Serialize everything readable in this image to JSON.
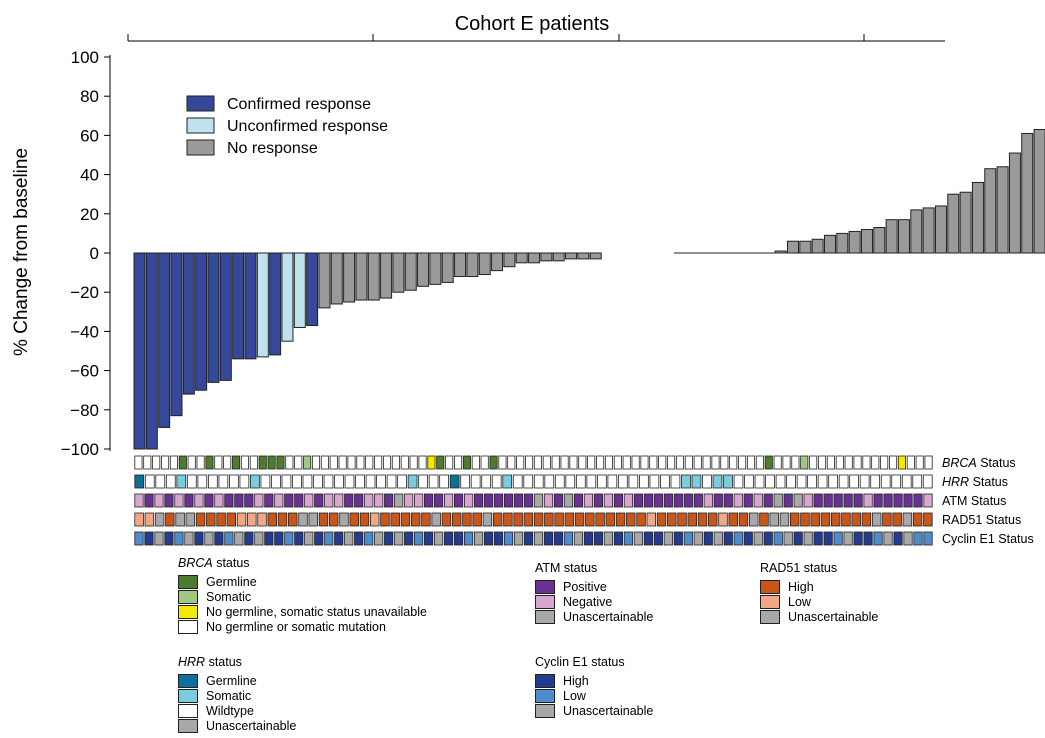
{
  "chart_data": {
    "type": "bar",
    "title": "Cohort E patients",
    "ylabel": "% Change from baseline",
    "xlabel": "",
    "ylim": [
      -100,
      100
    ],
    "yticks": [
      100,
      80,
      60,
      40,
      20,
      0,
      -20,
      -40,
      -60,
      -80,
      -100
    ],
    "grid": false,
    "legend_position": "top-left",
    "response_legend": [
      {
        "label": "Confirmed response",
        "color": "#35489a"
      },
      {
        "label": "Unconfirmed response",
        "color": "#bfe2ee"
      },
      {
        "label": "No response",
        "color": "#9a9a9a"
      }
    ],
    "values": [
      -100,
      -100,
      -89,
      -83,
      -72,
      -70,
      -66,
      -65,
      -54,
      -54,
      -53,
      -52,
      -45,
      -38,
      -37,
      -28,
      -26,
      -25,
      -24,
      -24,
      -23,
      -20,
      -19,
      -17,
      -16,
      -15,
      -12,
      -12,
      -11,
      -9,
      -7,
      -5,
      -5,
      -4,
      -4,
      -3,
      -3,
      -3,
      null,
      null,
      null,
      null,
      null,
      null,
      null,
      null,
      null,
      null,
      null,
      null,
      null,
      null,
      1,
      6,
      6,
      7,
      9,
      10,
      11,
      12,
      13,
      17,
      17,
      22,
      23,
      24,
      30,
      31,
      36,
      43,
      44,
      51,
      61,
      63
    ],
    "responses": [
      "C",
      "C",
      "C",
      "C",
      "C",
      "C",
      "C",
      "C",
      "C",
      "C",
      "U",
      "C",
      "U",
      "U",
      "C",
      "N",
      "N",
      "N",
      "N",
      "N",
      "N",
      "N",
      "N",
      "N",
      "N",
      "N",
      "N",
      "N",
      "N",
      "N",
      "N",
      "N",
      "N",
      "N",
      "N",
      "N",
      "N",
      "N",
      "",
      "",
      "",
      "",
      "",
      "",
      "",
      "",
      "",
      "",
      "",
      "",
      "",
      "",
      "N",
      "N",
      "N",
      "N",
      "N",
      "N",
      "N",
      "N",
      "N",
      "N",
      "N",
      "N",
      "N",
      "N",
      "N",
      "N",
      "N",
      "N",
      "N",
      "N",
      "N",
      "N"
    ],
    "status_rows": [
      {
        "label_italic": "BRCA",
        "label_rest": " Status",
        "codes": "WWWWWGWWGWWGWWGGGWWSWWWWWWWWWWWWWYGWWGWWGWWWWWWWWWWWWWWWWWWWWWWWWWWWWWWGWWWSWWWWWWWWWWYWWW"
      },
      {
        "label_italic": "HRR",
        "label_rest": " Status",
        "codes": "GWWWSWWWWWWSWWWWWWWWWWWWWWSWWWGWWWWSWWWWWWWWWWWWWWWWSSWSSWWWWWWWWWWWWWWWWWWW"
      },
      {
        "label_italic": "",
        "label_rest": "ATM Status",
        "codes": "NPNPNPNPNPPPNPNPPNPNNPPNNPUNNPPNPNPPPPPPUNPUPNPNPNPPPPPPPNPPNPNPUPUNPPPPPNPPPPPN"
      },
      {
        "label_italic": "",
        "label_rest": "RAD51 Status",
        "codes": "LLUHUUHHHHLLLHHHUUHHUHHLHHHHHUHHHHUHHHHHHHHHHHHHHHLHHHHHHLHHUHUUHHHHHHHHUHHUHH"
      },
      {
        "label_italic": "",
        "label_rest": "Cyclin E1 Status",
        "codes": "LHUHLUHUHLUHUHHLHUHLHUHLUHUHLHUHHLUHHLUHUHHLUHHUHLUHHUHLUHUHLHUHLUHUHHLUHHLUHULL"
      }
    ],
    "status_colors": {
      "brca": {
        "G": "#4e7c2e",
        "S": "#9fc983",
        "Y": "#f4ea00",
        "W": "#ffffff"
      },
      "hrr": {
        "G": "#0d6f9a",
        "S": "#7ccce0",
        "W": "#ffffff",
        "U": "#a8a8a8"
      },
      "atm": {
        "P": "#6a3195",
        "N": "#d8a6cf",
        "U": "#a8a8a8"
      },
      "rad51": {
        "H": "#c8561a",
        "L": "#f2a887",
        "U": "#a8a8a8"
      },
      "cyclin": {
        "H": "#243b90",
        "L": "#4f8ccb",
        "U": "#a8a8a8"
      }
    }
  },
  "legends": {
    "brca": {
      "title_italic": "BRCA",
      "title_rest": " status",
      "items": [
        {
          "label": "Germline",
          "color": "#4e7c2e"
        },
        {
          "label": "Somatic",
          "color": "#9fc983"
        },
        {
          "label": "No germline, somatic status unavailable",
          "color": "#f4ea00"
        },
        {
          "label": "No germline or somatic mutation",
          "color": "#ffffff"
        }
      ]
    },
    "hrr": {
      "title_italic": "HRR",
      "title_rest": " status",
      "items": [
        {
          "label": "Germline",
          "color": "#0d6f9a"
        },
        {
          "label": "Somatic",
          "color": "#7ccce0"
        },
        {
          "label": "Wildtype",
          "color": "#ffffff"
        },
        {
          "label": "Unascertainable",
          "color": "#a8a8a8"
        }
      ]
    },
    "atm": {
      "title_italic": "",
      "title_rest": "ATM status",
      "items": [
        {
          "label": "Positive",
          "color": "#6a3195"
        },
        {
          "label": "Negative",
          "color": "#d8a6cf"
        },
        {
          "label": "Unascertainable",
          "color": "#a8a8a8"
        }
      ]
    },
    "cyclin": {
      "title_italic": "",
      "title_rest": "Cyclin E1 status",
      "items": [
        {
          "label": "High",
          "color": "#243b90"
        },
        {
          "label": "Low",
          "color": "#4f8ccb"
        },
        {
          "label": "Unascertainable",
          "color": "#a8a8a8"
        }
      ]
    },
    "rad51": {
      "title_italic": "",
      "title_rest": "RAD51 status",
      "items": [
        {
          "label": "High",
          "color": "#c8561a"
        },
        {
          "label": "Low",
          "color": "#f2a887"
        },
        {
          "label": "Unascertainable",
          "color": "#a8a8a8"
        }
      ]
    }
  }
}
